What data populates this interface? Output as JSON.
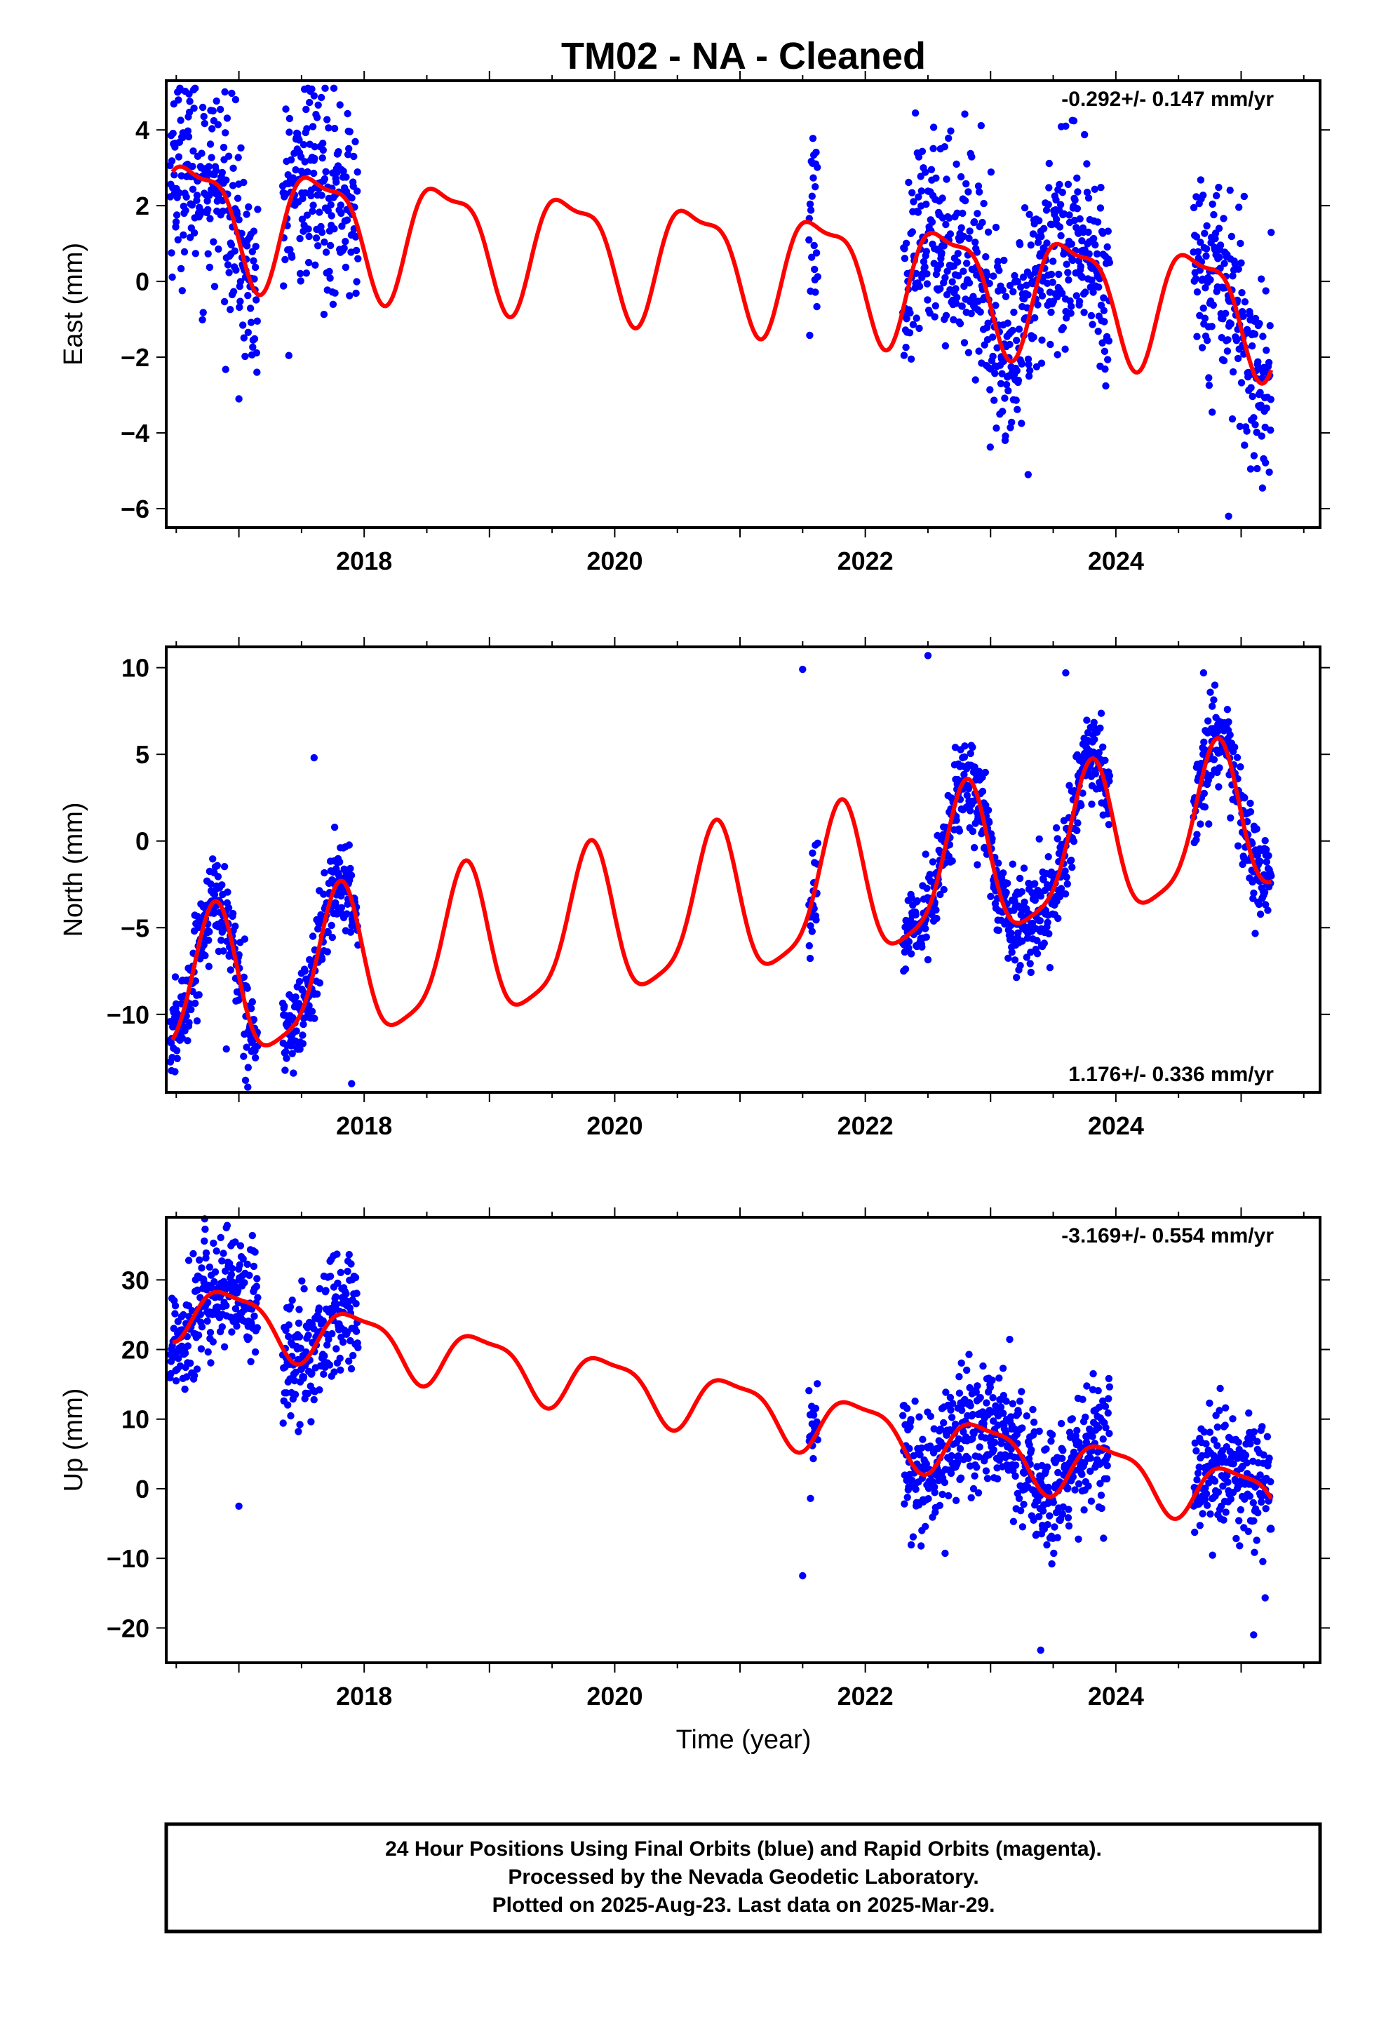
{
  "title": "TM02  - NA - Cleaned",
  "xlabel": "Time (year)",
  "colors": {
    "points": "#0000ff",
    "model": "#ff0000",
    "frame": "#000000"
  },
  "footer": {
    "line1": "24 Hour Positions Using Final Orbits (blue) and Rapid Orbits (magenta).",
    "line2": "Processed by the Nevada Geodetic Laboratory.",
    "line3": "Plotted on 2025-Aug-23. Last data on 2025-Mar-29."
  },
  "chart_data": [
    {
      "type": "scatter",
      "name": "east",
      "ylabel": "East (mm)",
      "rate": "-0.292+/- 0.147 mm/yr",
      "rate_position": "top-right",
      "xlim": [
        2016.42,
        2025.63
      ],
      "ylim": [
        -6.5,
        5.3
      ],
      "xticks": [
        2018,
        2020,
        2022,
        2024
      ],
      "yticks": [
        4,
        2,
        0,
        -2,
        -4,
        -6
      ],
      "data_segments": [
        [
          2016.45,
          2017.15
        ],
        [
          2017.35,
          2017.95
        ],
        [
          2021.55,
          2021.62
        ],
        [
          2022.3,
          2023.95
        ],
        [
          2024.62,
          2025.24
        ]
      ],
      "model": {
        "offset": 0.8,
        "slope": -0.292,
        "ann_amp": 1.5,
        "ann_phase": 0.4,
        "semi_amp": 0.5,
        "semi_phase": 0.3
      },
      "noise": 1.3,
      "sample_points": [
        {
          "x": 2016.6,
          "y": 2.8
        },
        {
          "x": 2017.0,
          "y": -3.1
        },
        {
          "x": 2017.6,
          "y": 4.9
        },
        {
          "x": 2021.6,
          "y": 2.5
        },
        {
          "x": 2022.6,
          "y": 3.5
        },
        {
          "x": 2023.3,
          "y": -5.1
        },
        {
          "x": 2023.6,
          "y": 4.1
        },
        {
          "x": 2024.9,
          "y": -6.2
        }
      ]
    },
    {
      "type": "scatter",
      "name": "north",
      "ylabel": "North (mm)",
      "rate": "1.176+/- 0.336 mm/yr",
      "rate_position": "bottom-right",
      "xlim": [
        2016.42,
        2025.63
      ],
      "ylim": [
        -14.5,
        11.2
      ],
      "xticks": [
        2018,
        2020,
        2022,
        2024
      ],
      "yticks": [
        10,
        5,
        0,
        -5,
        -10
      ],
      "data_segments": [
        [
          2016.45,
          2017.15
        ],
        [
          2017.35,
          2017.95
        ],
        [
          2021.55,
          2021.62
        ],
        [
          2022.3,
          2023.95
        ],
        [
          2024.62,
          2025.24
        ]
      ],
      "model": {
        "offset": -5.0,
        "slope": 1.176,
        "ann_amp": 4.3,
        "ann_phase": 0.55,
        "semi_amp": 1.0,
        "semi_phase": 0.2
      },
      "noise": 1.3,
      "sample_points": [
        {
          "x": 2016.5,
          "y": -9.9
        },
        {
          "x": 2016.9,
          "y": -12.0
        },
        {
          "x": 2017.6,
          "y": 4.8
        },
        {
          "x": 2017.9,
          "y": -14.0
        },
        {
          "x": 2021.5,
          "y": 9.9
        },
        {
          "x": 2022.5,
          "y": 10.7
        },
        {
          "x": 2023.2,
          "y": -6.0
        },
        {
          "x": 2023.6,
          "y": 9.7
        },
        {
          "x": 2024.7,
          "y": 9.7
        }
      ]
    },
    {
      "type": "scatter",
      "name": "up",
      "ylabel": "Up (mm)",
      "rate": "-3.169+/- 0.554 mm/yr",
      "rate_position": "top-right",
      "xlim": [
        2016.42,
        2025.63
      ],
      "ylim": [
        -25,
        39
      ],
      "xticks": [
        2018,
        2020,
        2022,
        2024
      ],
      "yticks": [
        30,
        20,
        10,
        0,
        -10,
        -20
      ],
      "data_segments": [
        [
          2016.45,
          2017.15
        ],
        [
          2017.35,
          2017.95
        ],
        [
          2021.55,
          2021.62
        ],
        [
          2022.3,
          2023.95
        ],
        [
          2024.62,
          2025.24
        ]
      ],
      "model": {
        "offset": 15.0,
        "slope": -3.169,
        "ann_amp": 4.0,
        "ann_phase": 0.7,
        "semi_amp": 1.2,
        "semi_phase": 0.1
      },
      "noise": 4.5,
      "sample_points": [
        {
          "x": 2016.6,
          "y": 32.8
        },
        {
          "x": 2016.9,
          "y": 37.5
        },
        {
          "x": 2017.0,
          "y": -2.5
        },
        {
          "x": 2021.5,
          "y": -12.5
        },
        {
          "x": 2023.1,
          "y": 17.3
        },
        {
          "x": 2023.4,
          "y": -23.2
        },
        {
          "x": 2025.1,
          "y": -21.0
        }
      ]
    }
  ]
}
